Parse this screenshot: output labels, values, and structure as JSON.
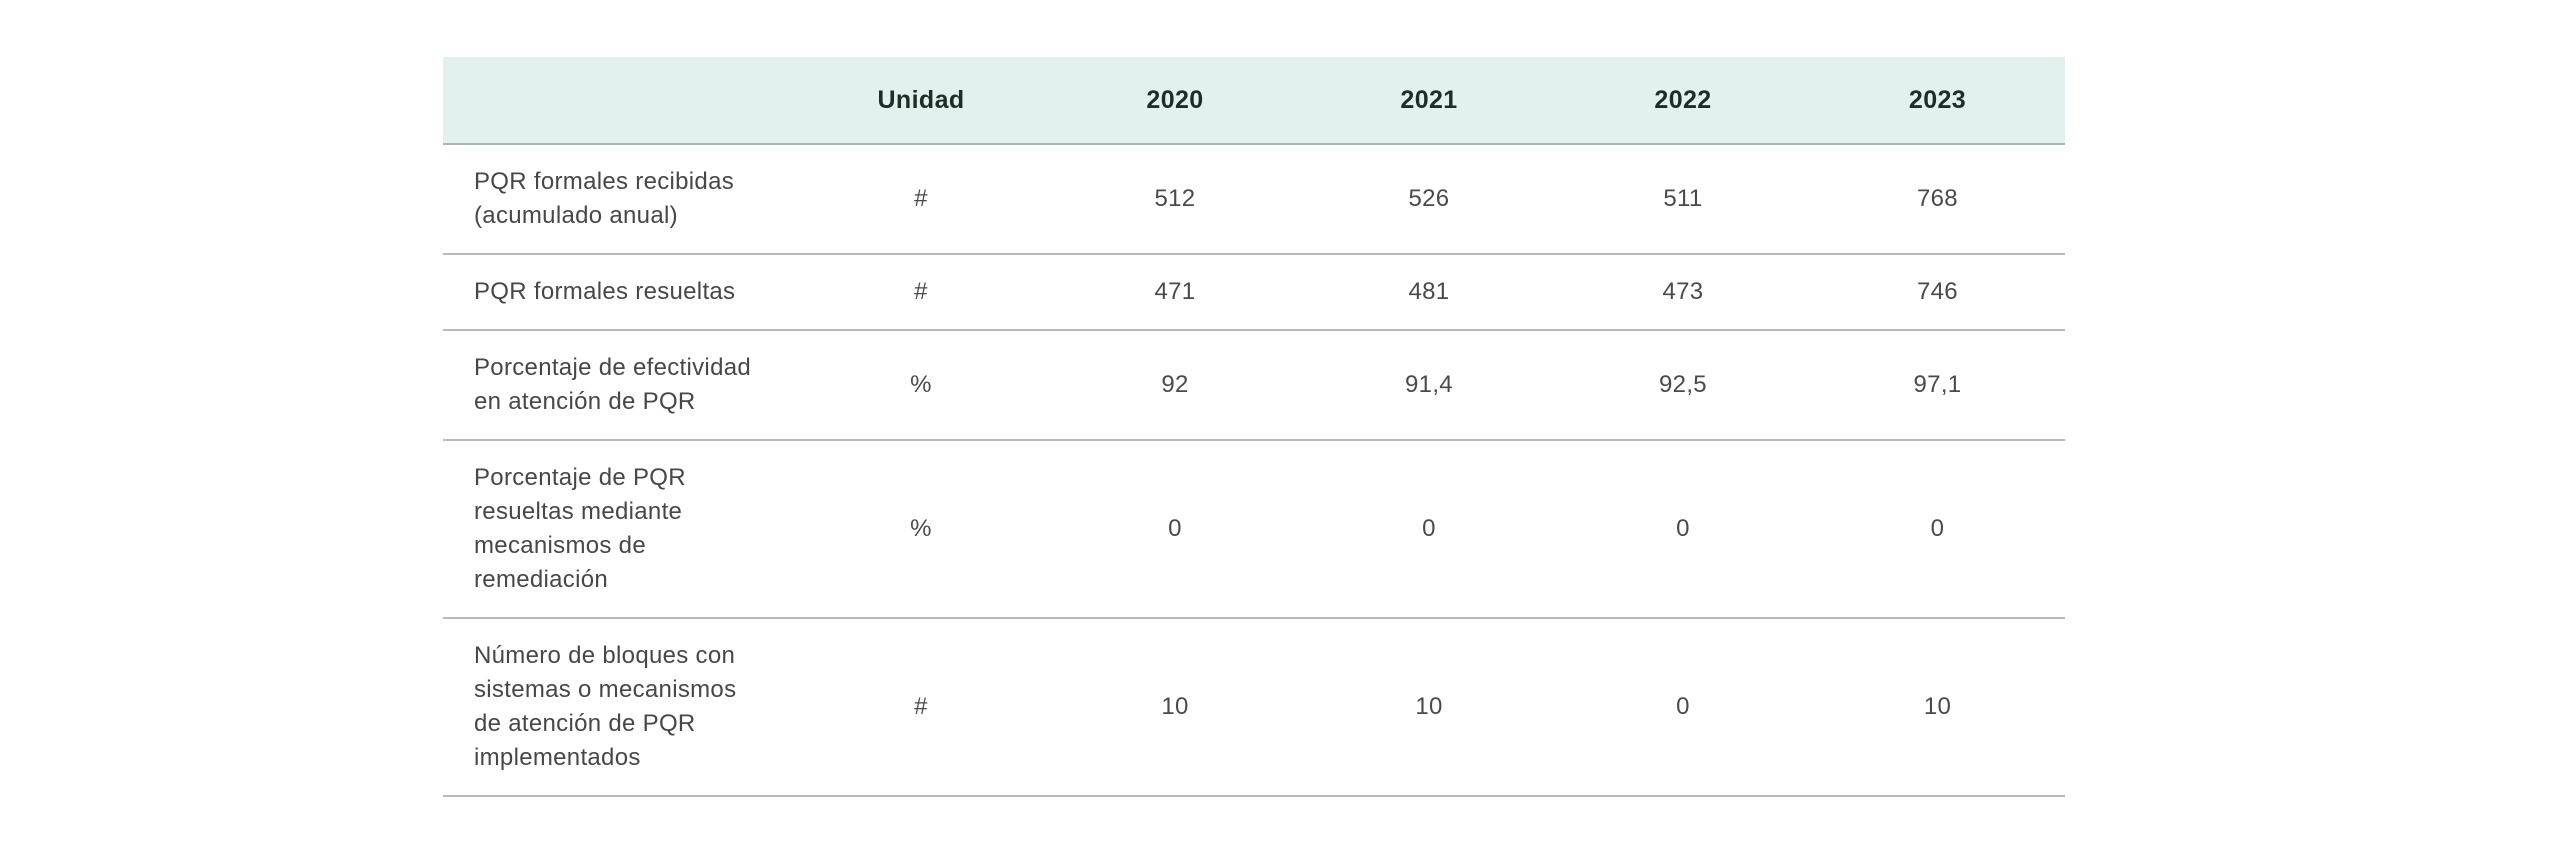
{
  "table": {
    "header": {
      "corner": "",
      "unit_label": "Unidad",
      "years": [
        "2020",
        "2021",
        "2022",
        "2023"
      ]
    },
    "rows": [
      {
        "label": "PQR formales recibidas\n(acumulado anual)",
        "unit": "#",
        "values": [
          "512",
          "526",
          "511",
          "768"
        ]
      },
      {
        "label": "PQR formales resueltas",
        "unit": "#",
        "values": [
          "471",
          "481",
          "473",
          "746"
        ]
      },
      {
        "label": "Porcentaje de efectividad\nen atención de PQR",
        "unit": "%",
        "values": [
          "92",
          "91,4",
          "92,5",
          "97,1"
        ]
      },
      {
        "label": "Porcentaje de PQR\nresueltas mediante\nmecanismos de\nremediación",
        "unit": "%",
        "values": [
          "0",
          "0",
          "0",
          "0"
        ]
      },
      {
        "label": "Número de bloques con\nsistemas o mecanismos\nde atención de PQR\nimplementados",
        "unit": "#",
        "values": [
          "10",
          "10",
          "0",
          "10"
        ]
      }
    ],
    "colors": {
      "header_bg": "#e2f1ed",
      "header_text": "#1f2d29",
      "body_text": "#4a4a4a",
      "header_border": "#a9b6b2",
      "row_border": "#b9b9b9"
    }
  },
  "chart_data": {
    "type": "table",
    "columns": [
      "",
      "Unidad",
      "2020",
      "2021",
      "2022",
      "2023"
    ],
    "rows": [
      [
        "PQR formales recibidas (acumulado anual)",
        "#",
        512,
        526,
        511,
        768
      ],
      [
        "PQR formales resueltas",
        "#",
        471,
        481,
        473,
        746
      ],
      [
        "Porcentaje de efectividad en atención de PQR",
        "%",
        92,
        91.4,
        92.5,
        97.1
      ],
      [
        "Porcentaje de PQR resueltas mediante mecanismos de remediación",
        "%",
        0,
        0,
        0,
        0
      ],
      [
        "Número de bloques con sistemas o mecanismos de atención de PQR implementados",
        "#",
        10,
        10,
        0,
        10
      ]
    ],
    "notes": "Decimal values shown with comma separator (es-CO locale); header row has mint background"
  }
}
